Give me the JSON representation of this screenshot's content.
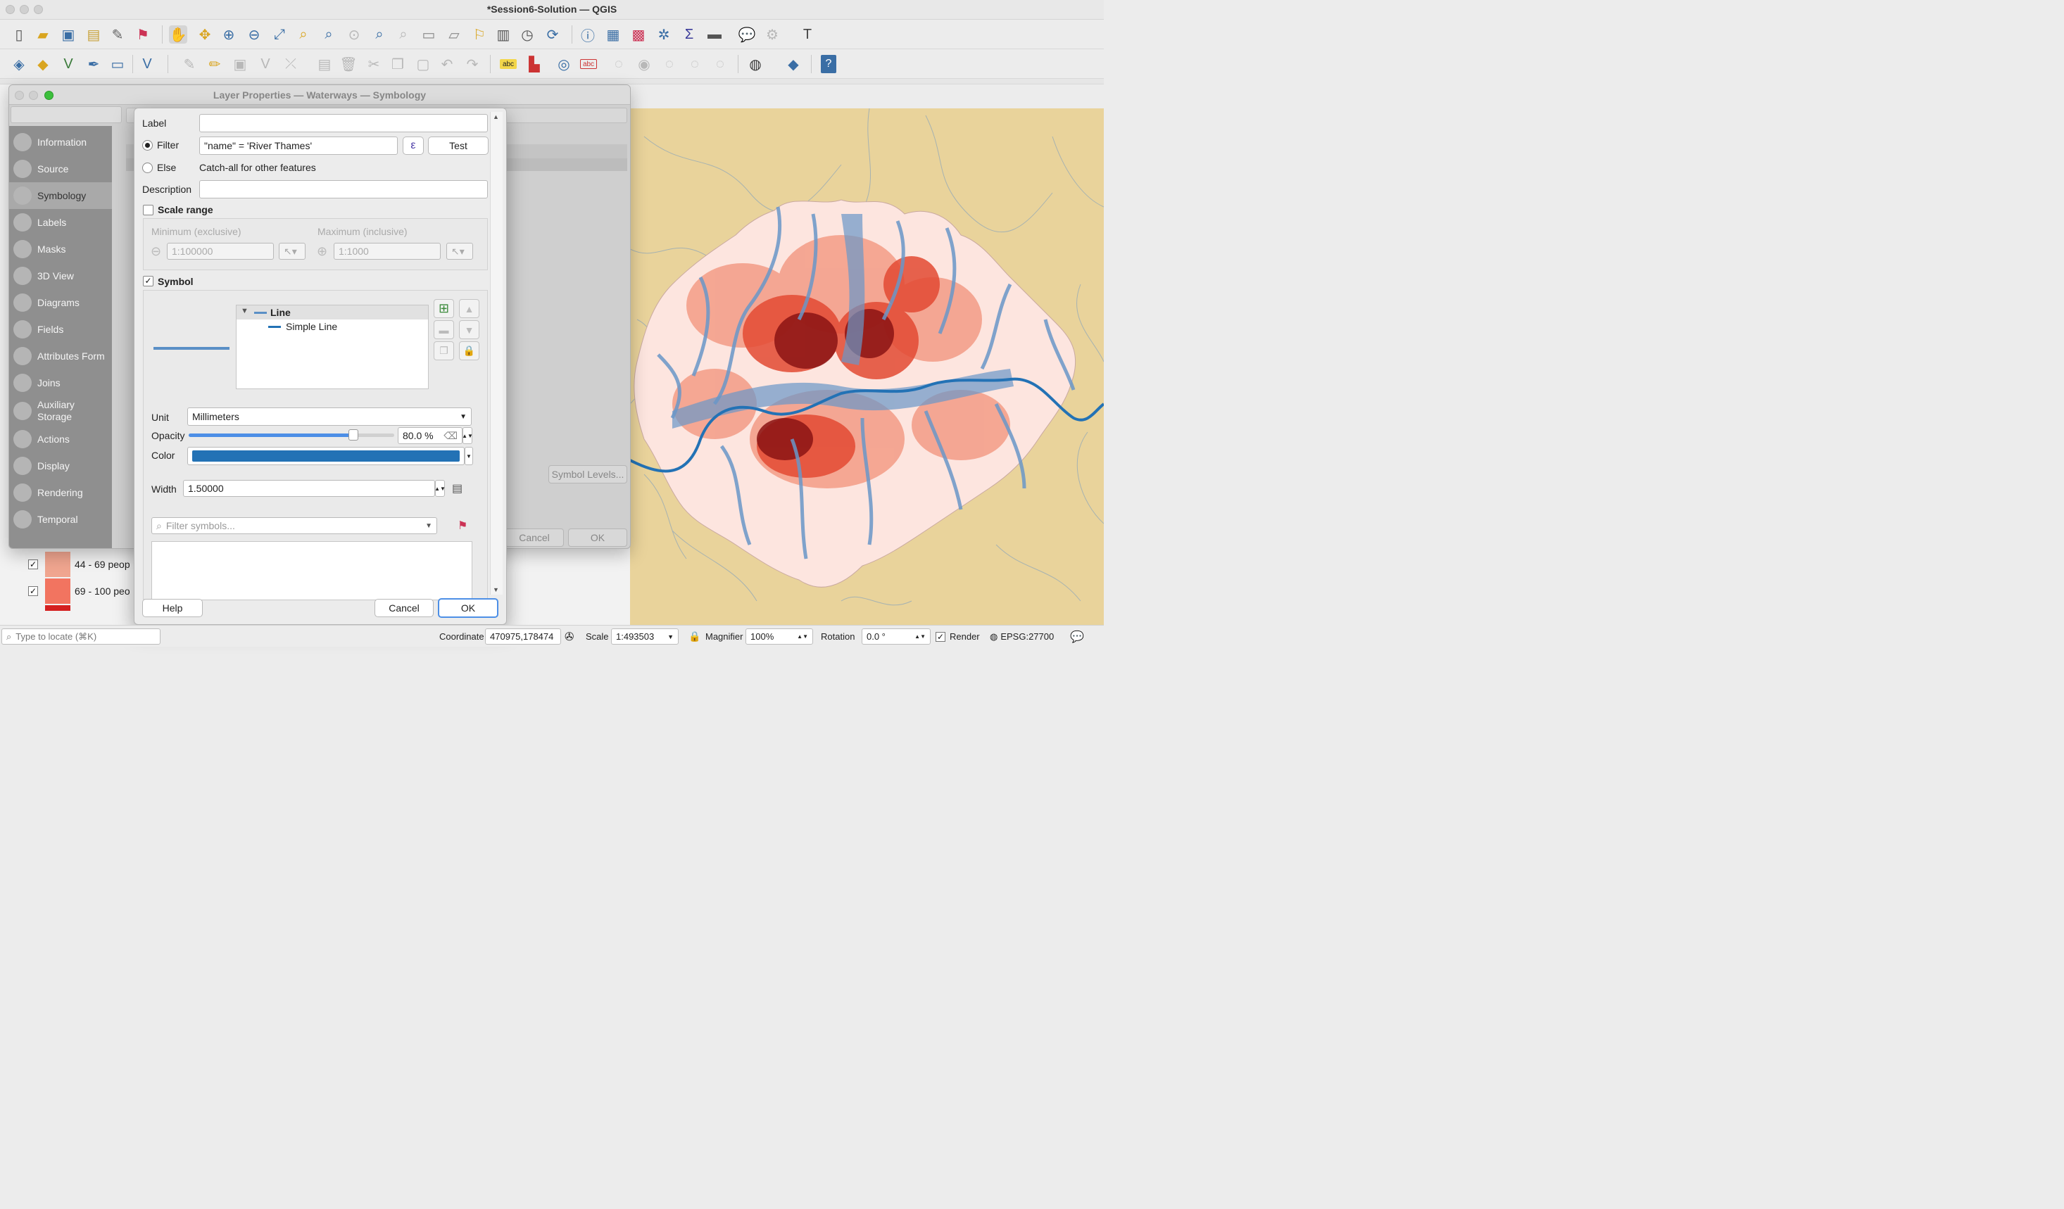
{
  "window": {
    "title": "*Session6-Solution — QGIS"
  },
  "back_dialog": {
    "title": "Layer Properties — Waterways — Symbology",
    "sidebar": [
      {
        "label": "Information",
        "icon": "info-icon"
      },
      {
        "label": "Source",
        "icon": "source-icon"
      },
      {
        "label": "Symbology",
        "icon": "symbology-icon"
      },
      {
        "label": "Labels",
        "icon": "labels-icon"
      },
      {
        "label": "Masks",
        "icon": "masks-icon"
      },
      {
        "label": "3D View",
        "icon": "3d-view-icon"
      },
      {
        "label": "Diagrams",
        "icon": "diagrams-icon"
      },
      {
        "label": "Fields",
        "icon": "fields-icon"
      },
      {
        "label": "Attributes Form",
        "icon": "attributes-form-icon"
      },
      {
        "label": "Joins",
        "icon": "joins-icon"
      },
      {
        "label": "Auxiliary",
        "label2": "Storage",
        "icon": "auxiliary-storage-icon"
      },
      {
        "label": "Actions",
        "icon": "actions-icon"
      },
      {
        "label": "Display",
        "icon": "display-icon"
      },
      {
        "label": "Rendering",
        "icon": "rendering-icon"
      },
      {
        "label": "Temporal",
        "icon": "temporal-icon"
      }
    ],
    "symbol_levels_label": "Symbol Levels...",
    "cancel_label": "Cancel",
    "ok_label": "OK"
  },
  "rule_dialog": {
    "label_label": "Label",
    "label_value": "",
    "filter_label": "Filter",
    "filter_value": "\"name\"   = 'River Thames'",
    "expression_button": "ε",
    "test_button": "Test",
    "else_label": "Else",
    "else_desc": "Catch-all for other features",
    "description_label": "Description",
    "description_value": "",
    "scale_range_label": "Scale range",
    "min_label": "Minimum (exclusive)",
    "min_value": "1:100000",
    "max_label": "Maximum (inclusive)",
    "max_value": "1:1000",
    "symbol_label": "Symbol",
    "tree": {
      "root": "Line",
      "child": "Simple Line"
    },
    "unit_label": "Unit",
    "unit_value": "Millimeters",
    "opacity_label": "Opacity",
    "opacity_value": "80.0 %",
    "opacity_fraction": 0.8,
    "color_label": "Color",
    "color_value": "#2372b5",
    "width_label": "Width",
    "width_value": "1.50000",
    "filter_symbols_placeholder": "Filter symbols...",
    "help_button": "Help",
    "cancel_button": "Cancel",
    "ok_button": "OK"
  },
  "legend": [
    {
      "label": "44 - 69 peop",
      "color": "#f0a58f"
    },
    {
      "label": "69 - 100 peo",
      "color": "#f27460"
    }
  ],
  "status_bar": {
    "locate_placeholder": "Type to locate (⌘K)",
    "coordinate_label": "Coordinate",
    "coordinate_value": "470975,178474",
    "scale_label": "Scale",
    "scale_value": "1:493503",
    "magnifier_label": "Magnifier",
    "magnifier_value": "100%",
    "rotation_label": "Rotation",
    "rotation_value": "0.0 °",
    "render_label": "Render",
    "crs_label": "EPSG:27700"
  },
  "colors": {
    "map_background": "#e9d39b",
    "water": "#6a97c8",
    "thames": "#2372b5"
  }
}
